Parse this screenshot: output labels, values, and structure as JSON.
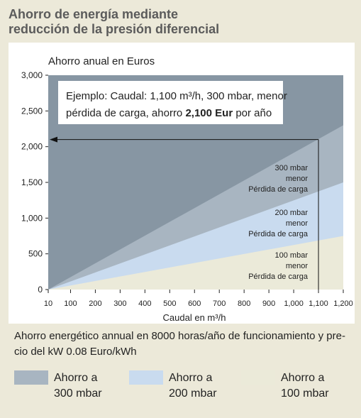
{
  "chart_data": {
    "type": "area",
    "title_lines": [
      "Ahorro de energía mediante",
      "reducción de la presión diferencial"
    ],
    "ylabel": "Ahorro anual en Euros",
    "xlabel": "Caudal en m³/h",
    "xlim": [
      10,
      1200
    ],
    "ylim": [
      0,
      3000
    ],
    "x_ticks": [
      "10",
      "100",
      "200",
      "300",
      "400",
      "500",
      "600",
      "700",
      "800",
      "900",
      "1,000",
      "1,100",
      "1,200"
    ],
    "x_tick_values": [
      10,
      100,
      200,
      300,
      400,
      500,
      600,
      700,
      800,
      900,
      1000,
      1100,
      1200
    ],
    "y_ticks": [
      "0",
      "500",
      "1,000",
      "1,500",
      "2,000",
      "2,500",
      "3,000"
    ],
    "y_tick_values": [
      0,
      500,
      1000,
      1500,
      2000,
      2500,
      3000
    ],
    "series": [
      {
        "name": "Ahorro a 300 mbar",
        "label_lines": [
          "300 mbar",
          "menor",
          "Pérdida de carga"
        ],
        "x": [
          10,
          1200
        ],
        "y": [
          0,
          2300
        ],
        "color": "#a8b5c1"
      },
      {
        "name": "Ahorro a 200 mbar",
        "label_lines": [
          "200 mbar",
          "menor",
          "Pérdida de carga"
        ],
        "x": [
          10,
          1200
        ],
        "y": [
          0,
          1500
        ],
        "color": "#c9dbef"
      },
      {
        "name": "Ahorro a 100 mbar",
        "label_lines": [
          "100 mbar",
          "menor",
          "Pérdida de carga"
        ],
        "x": [
          10,
          1200
        ],
        "y": [
          0,
          750
        ],
        "color": "#ebead9"
      }
    ],
    "background_color": "#8796a3",
    "annotation": {
      "line1": "Ejemplo: Caudal: 1,100 m³/h, 300 mbar, menor",
      "line2_pre": "pérdida de carga, ahorro ",
      "line2_bold": "2,100 Eur",
      "line2_post": " por año",
      "x": 1100,
      "y": 2100
    },
    "grid": false
  },
  "footnote": "Ahorro energético annual en 8000 horas/año de funcionamiento y pre-cio del kW  0.08 Euro/kWh",
  "legend": [
    {
      "line1": "Ahorro a",
      "line2": "300 mbar",
      "color": "#a8b5c1"
    },
    {
      "line1": "Ahorro a",
      "line2": "200 mbar",
      "color": "#c9dbef"
    },
    {
      "line1": "Ahorro a",
      "line2": "100 mbar",
      "color": "#ebead9"
    }
  ]
}
